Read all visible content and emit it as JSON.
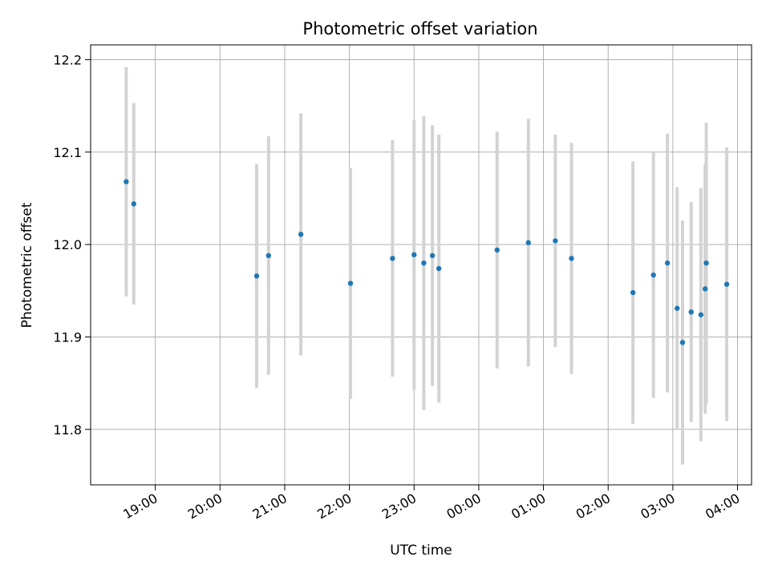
{
  "chart_data": {
    "type": "scatter",
    "title": "Photometric offset variation",
    "xlabel": "UTC time",
    "ylabel": "Photometric offset",
    "x_axis": {
      "kind": "time",
      "range": [
        "18:00",
        "04:13"
      ],
      "ticks": [
        "19:00",
        "20:00",
        "21:00",
        "22:00",
        "23:00",
        "00:00",
        "01:00",
        "02:00",
        "03:00",
        "04:00"
      ]
    },
    "y_axis": {
      "range": [
        11.74,
        12.216
      ],
      "ticks": [
        "11.8",
        "11.9",
        "12.0",
        "12.1",
        "12.2"
      ]
    },
    "grid": true,
    "legend": "none",
    "colors": {
      "point": "#1f77b4",
      "errorbar": "#d3d3d3",
      "grid": "#b0b0b0"
    },
    "points": [
      {
        "x": "18:33",
        "y": 12.068,
        "yerr": 0.124
      },
      {
        "x": "18:40",
        "y": 12.044,
        "yerr": 0.109
      },
      {
        "x": "20:34",
        "y": 11.966,
        "yerr": 0.121
      },
      {
        "x": "20:45",
        "y": 11.988,
        "yerr": 0.129
      },
      {
        "x": "21:15",
        "y": 12.011,
        "yerr": 0.131
      },
      {
        "x": "22:01",
        "y": 11.958,
        "yerr": 0.125
      },
      {
        "x": "22:40",
        "y": 11.985,
        "yerr": 0.128
      },
      {
        "x": "23:00",
        "y": 11.989,
        "yerr": 0.146
      },
      {
        "x": "23:09",
        "y": 11.98,
        "yerr": 0.159
      },
      {
        "x": "23:17",
        "y": 11.988,
        "yerr": 0.141
      },
      {
        "x": "23:23",
        "y": 11.974,
        "yerr": 0.145
      },
      {
        "x": "00:17",
        "y": 11.994,
        "yerr": 0.128
      },
      {
        "x": "00:46",
        "y": 12.002,
        "yerr": 0.134
      },
      {
        "x": "01:11",
        "y": 12.004,
        "yerr": 0.115
      },
      {
        "x": "01:26",
        "y": 11.985,
        "yerr": 0.125
      },
      {
        "x": "02:23",
        "y": 11.948,
        "yerr": 0.142
      },
      {
        "x": "02:42",
        "y": 11.967,
        "yerr": 0.133
      },
      {
        "x": "02:55",
        "y": 11.98,
        "yerr": 0.14
      },
      {
        "x": "03:04",
        "y": 11.931,
        "yerr": 0.131
      },
      {
        "x": "03:09",
        "y": 11.894,
        "yerr": 0.132
      },
      {
        "x": "03:17",
        "y": 11.927,
        "yerr": 0.119
      },
      {
        "x": "03:26",
        "y": 11.924,
        "yerr": 0.137
      },
      {
        "x": "03:30",
        "y": 11.952,
        "yerr": 0.135
      },
      {
        "x": "03:31",
        "y": 11.98,
        "yerr": 0.152
      },
      {
        "x": "03:50",
        "y": 11.957,
        "yerr": 0.148
      }
    ]
  }
}
